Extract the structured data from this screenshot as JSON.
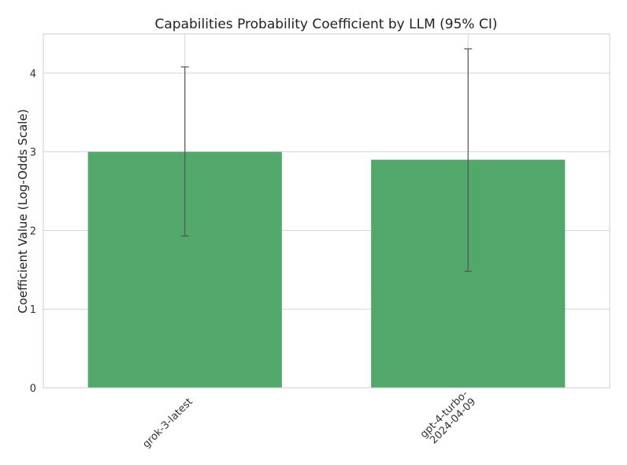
{
  "chart_data": {
    "type": "bar",
    "title": "Capabilities Probability Coefficient by LLM (95% CI)",
    "xlabel": "",
    "ylabel": "Coefficient Value (Log-Odds Scale)",
    "categories": [
      [
        "grok-3-latest"
      ],
      [
        "gpt-4-turbo-",
        "2024-04-09"
      ]
    ],
    "values": [
      3.0,
      2.9
    ],
    "ci_lower": [
      1.93,
      1.48
    ],
    "ci_upper": [
      4.08,
      4.31
    ],
    "ylim": [
      0,
      4.5
    ],
    "yticks": [
      0,
      1,
      2,
      3,
      4
    ],
    "grid": true,
    "colors": {
      "bar": "#52a86b",
      "error": "#555555"
    }
  }
}
